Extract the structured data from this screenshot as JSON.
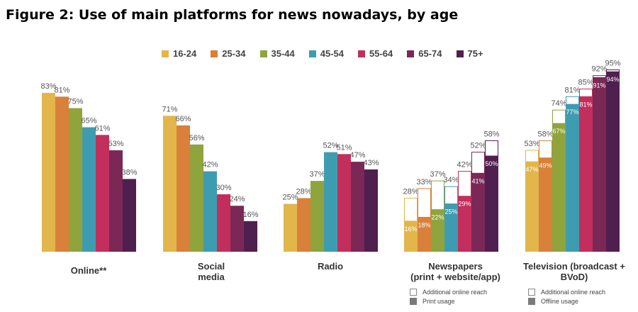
{
  "title": "Figure 2: Use of main platforms for news nowadays, by age",
  "legend": [
    {
      "label": "16-24",
      "color": "#e2b64a"
    },
    {
      "label": "25-34",
      "color": "#d9803a"
    },
    {
      "label": "35-44",
      "color": "#8fa43c"
    },
    {
      "label": "45-54",
      "color": "#3e9cb0"
    },
    {
      "label": "55-64",
      "color": "#c22f5c"
    },
    {
      "label": "65-74",
      "color": "#7b2857"
    },
    {
      "label": "75+",
      "color": "#4f1f4f"
    }
  ],
  "sub_legends": {
    "newspapers": {
      "outline": "Additional online reach",
      "solid": "Print usage"
    },
    "television": {
      "outline": "Additional online reach",
      "solid": "Offline usage"
    }
  },
  "chart_data": {
    "type": "bar",
    "title": "Figure 2: Use of main platforms for news nowadays, by age",
    "ylim": [
      0,
      100
    ],
    "series": [
      {
        "name": "16-24",
        "color": "#e2b64a"
      },
      {
        "name": "25-34",
        "color": "#d9803a"
      },
      {
        "name": "35-44",
        "color": "#8fa43c"
      },
      {
        "name": "45-54",
        "color": "#3e9cb0"
      },
      {
        "name": "55-64",
        "color": "#c22f5c"
      },
      {
        "name": "65-74",
        "color": "#7b2857"
      },
      {
        "name": "75+",
        "color": "#4f1f4f"
      }
    ],
    "groups": [
      {
        "label": "Online**",
        "values": [
          83,
          81,
          75,
          65,
          61,
          53,
          38
        ]
      },
      {
        "label": "Social\nmedia",
        "values": [
          71,
          66,
          56,
          42,
          30,
          24,
          16
        ]
      },
      {
        "label": "Radio",
        "values": [
          25,
          28,
          37,
          52,
          51,
          47,
          43
        ]
      },
      {
        "label": "Newspapers\n(print + website/app)",
        "values": [
          28,
          33,
          37,
          34,
          42,
          52,
          58
        ],
        "inner_values": [
          16,
          18,
          22,
          25,
          29,
          41,
          50
        ],
        "inner_label": "Print usage",
        "outer_label": "Additional online reach"
      },
      {
        "label": "Television (broadcast +\nBVoD)",
        "values": [
          53,
          58,
          74,
          81,
          85,
          92,
          95
        ],
        "inner_values": [
          47,
          49,
          67,
          77,
          81,
          91,
          94
        ],
        "inner_label": "Offline usage",
        "outer_label": "Additional online reach"
      }
    ]
  }
}
